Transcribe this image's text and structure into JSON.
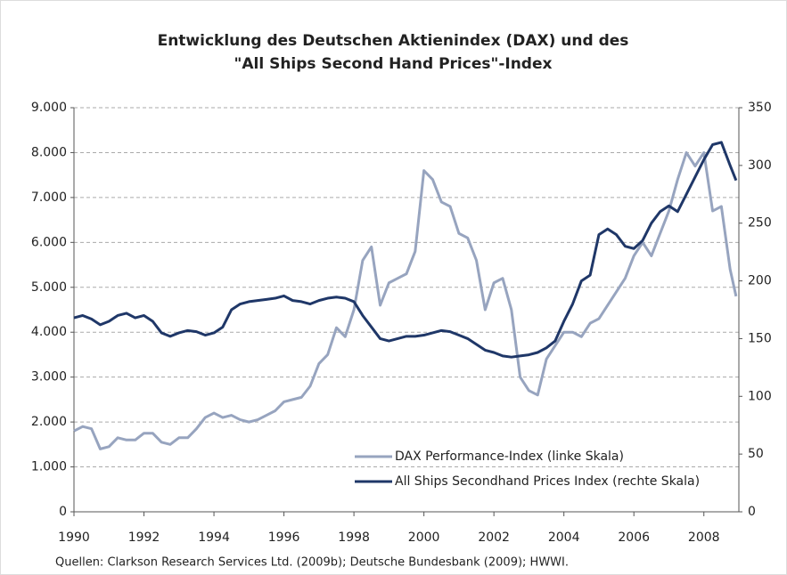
{
  "chart_data": {
    "type": "line",
    "title": "Entwicklung des Deutschen Aktienindex (DAX) und des",
    "subtitle": "\"All Ships Second Hand Prices\"-Index",
    "source": "Quellen: Clarkson Research Services Ltd. (2009b); Deutsche Bundesbank (2009); HWWI.",
    "x": [
      1990,
      1990.25,
      1990.5,
      1990.75,
      1991,
      1991.25,
      1991.5,
      1991.75,
      1992,
      1992.25,
      1992.5,
      1992.75,
      1993,
      1993.25,
      1993.5,
      1993.75,
      1994,
      1994.25,
      1994.5,
      1994.75,
      1995,
      1995.25,
      1995.5,
      1995.75,
      1996,
      1996.25,
      1996.5,
      1996.75,
      1997,
      1997.25,
      1997.5,
      1997.75,
      1998,
      1998.25,
      1998.5,
      1998.75,
      1999,
      1999.25,
      1999.5,
      1999.75,
      2000,
      2000.25,
      2000.5,
      2000.75,
      2001,
      2001.25,
      2001.5,
      2001.75,
      2002,
      2002.25,
      2002.5,
      2002.75,
      2003,
      2003.25,
      2003.5,
      2003.75,
      2004,
      2004.25,
      2004.5,
      2004.75,
      2005,
      2005.25,
      2005.5,
      2005.75,
      2006,
      2006.25,
      2006.5,
      2006.75,
      2007,
      2007.25,
      2007.5,
      2007.75,
      2008,
      2008.25,
      2008.5,
      2008.75,
      2008.92
    ],
    "series": [
      {
        "name": "DAX Performance-Index (linke Skala)",
        "color": "#97a4bf",
        "axis": "y",
        "values": [
          1800,
          1900,
          1850,
          1400,
          1450,
          1650,
          1600,
          1600,
          1750,
          1750,
          1550,
          1500,
          1650,
          1650,
          1850,
          2100,
          2200,
          2100,
          2150,
          2050,
          2000,
          2050,
          2150,
          2250,
          2450,
          2500,
          2550,
          2800,
          3300,
          3500,
          4100,
          3900,
          4500,
          5600,
          5900,
          4600,
          5100,
          5200,
          5300,
          5800,
          7600,
          7400,
          6900,
          6800,
          6200,
          6100,
          5600,
          4500,
          5100,
          5200,
          4500,
          3000,
          2700,
          2600,
          3400,
          3700,
          4000,
          4000,
          3900,
          4200,
          4300,
          4600,
          4900,
          5200,
          5700,
          6000,
          5700,
          6200,
          6700,
          7400,
          8000,
          7700,
          8000,
          6700,
          6800,
          5400,
          4800
        ]
      },
      {
        "name": "All Ships Secondhand Prices Index (rechte Skala)",
        "color": "#1f3768",
        "axis": "y2",
        "values": [
          168,
          170,
          167,
          162,
          165,
          170,
          172,
          168,
          170,
          165,
          155,
          152,
          155,
          157,
          156,
          153,
          155,
          160,
          175,
          180,
          182,
          183,
          184,
          185,
          187,
          183,
          182,
          180,
          183,
          185,
          186,
          185,
          182,
          170,
          160,
          150,
          148,
          150,
          152,
          152,
          153,
          155,
          157,
          156,
          153,
          150,
          145,
          140,
          138,
          135,
          134,
          135,
          136,
          138,
          142,
          148,
          165,
          180,
          200,
          205,
          240,
          245,
          240,
          230,
          228,
          235,
          250,
          260,
          265,
          260,
          275,
          290,
          305,
          318,
          320,
          300,
          287
        ]
      }
    ],
    "xlim": [
      1990,
      2009
    ],
    "xticks": [
      1990,
      1992,
      1994,
      1996,
      1998,
      2000,
      2002,
      2004,
      2006,
      2008
    ],
    "ylim": [
      0,
      9000
    ],
    "yticks": [
      0,
      {
        "value": 1000,
        "label": "1.000"
      },
      {
        "value": 2000,
        "label": "2.000"
      },
      {
        "value": 3000,
        "label": "3.000"
      },
      {
        "value": 4000,
        "label": "4.000"
      },
      {
        "value": 5000,
        "label": "5.000"
      },
      {
        "value": 6000,
        "label": "6.000"
      },
      {
        "value": 7000,
        "label": "7.000"
      },
      {
        "value": 8000,
        "label": "8.000"
      },
      {
        "value": 9000,
        "label": "9.000"
      }
    ],
    "y2lim": [
      0,
      350
    ],
    "y2ticks": [
      0,
      50,
      100,
      150,
      200,
      250,
      300,
      350
    ],
    "grid": true
  }
}
